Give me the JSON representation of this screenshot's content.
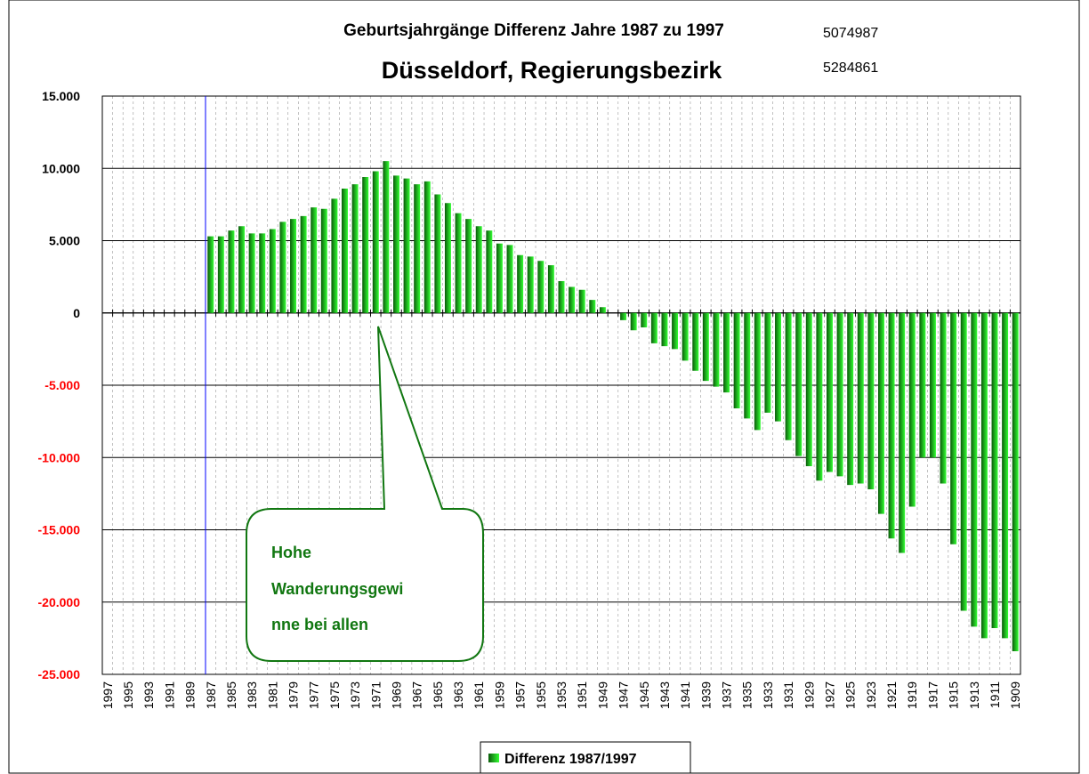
{
  "chart_data": {
    "type": "bar",
    "title": "Geburtsjahrgänge Differenz Jahre 1987 zu 1997",
    "subtitle": "Düsseldorf, Regierungsbezirk",
    "notes": [
      "5074987",
      "5284861"
    ],
    "annotation": [
      "Hohe",
      "Wanderungsgewi",
      "nne bei allen"
    ],
    "categories": [
      "1997",
      null,
      "1995",
      null,
      "1993",
      null,
      "1991",
      null,
      "1989",
      null,
      "1987",
      null,
      "1985",
      null,
      "1983",
      null,
      "1981",
      null,
      "1979",
      null,
      "1977",
      null,
      "1975",
      null,
      "1973",
      null,
      "1971",
      null,
      "1969",
      null,
      "1967",
      null,
      "1965",
      null,
      "1963",
      null,
      "1961",
      null,
      "1959",
      null,
      "1957",
      null,
      "1955",
      null,
      "1953",
      null,
      "1951",
      null,
      "1949",
      null,
      "1947",
      null,
      "1945",
      null,
      "1943",
      null,
      "1941",
      null,
      "1939",
      null,
      "1937",
      null,
      "1935",
      null,
      "1933",
      null,
      "1931",
      null,
      "1929",
      null,
      "1927",
      null,
      "1925",
      null,
      "1923",
      null,
      "1921",
      null,
      "1919",
      null,
      "1917",
      null,
      "1915",
      null,
      "1913",
      null,
      "1911",
      null,
      "1909"
    ],
    "series": [
      {
        "name": "Differenz 1987/1997",
        "color": "#22ee22",
        "values": [
          0,
          0,
          0,
          0,
          0,
          0,
          0,
          0,
          0,
          0,
          5300,
          5300,
          5700,
          6000,
          5500,
          5500,
          5800,
          6300,
          6500,
          6700,
          7300,
          7200,
          7900,
          8600,
          8900,
          9400,
          9800,
          10500,
          9500,
          9300,
          8900,
          9100,
          8200,
          7600,
          6900,
          6500,
          6000,
          5700,
          4800,
          4700,
          4000,
          3900,
          3600,
          3300,
          2200,
          1800,
          1600,
          900,
          400,
          0,
          -500,
          -1200,
          -1000,
          -2100,
          -2300,
          -2500,
          -3300,
          -4000,
          -4700,
          -5100,
          -5500,
          -6600,
          -7300,
          -8100,
          -6900,
          -7500,
          -8800,
          -9900,
          -10600,
          -11600,
          -11000,
          -11300,
          -11900,
          -11800,
          -12200,
          -13900,
          -15600,
          -16600,
          -13400,
          -10000,
          -10000,
          -11800,
          -16000,
          -20600,
          -21700,
          -22500,
          -21800,
          -22500,
          -23400
        ]
      }
    ],
    "ylim": [
      -25000,
      15000
    ],
    "yticks": [
      {
        "value": -25000,
        "label": "-25.000"
      },
      {
        "value": -20000,
        "label": "-20.000"
      },
      {
        "value": -15000,
        "label": "-15.000"
      },
      {
        "value": -10000,
        "label": "-10.000"
      },
      {
        "value": -5000,
        "label": "-5.000"
      },
      0,
      {
        "value": 5000,
        "label": "5.000"
      },
      {
        "value": 10000,
        "label": "10.000"
      },
      {
        "value": 15000,
        "label": "15.000"
      }
    ],
    "negative_tick_color": "#ff0000",
    "grid": true,
    "legend": "bottom"
  }
}
